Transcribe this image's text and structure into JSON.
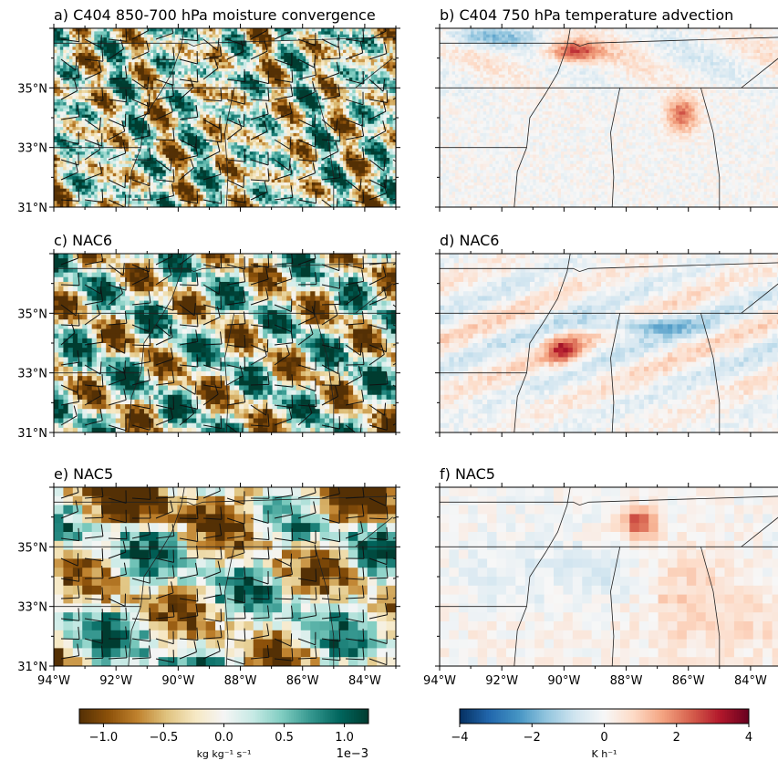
{
  "chart_data": [
    {
      "type": "heatmap",
      "panel": "a",
      "title": "a) C404 850-700 hPa moisture convergence",
      "field": "moisture convergence",
      "wind_barbs": true,
      "xlim": [
        -94,
        -83
      ],
      "ylim": [
        31,
        37
      ],
      "yticks": [
        "31°N",
        "33°N",
        "35°N"
      ],
      "colormap": "BrBG",
      "clim": [
        -0.0012,
        0.0012
      ]
    },
    {
      "type": "heatmap",
      "panel": "b",
      "title": "b) C404 750 hPa temperature advection",
      "field": "temperature advection",
      "wind_barbs": false,
      "xlim": [
        -94,
        -83
      ],
      "ylim": [
        31,
        37
      ],
      "colormap": "RdBu_r",
      "clim": [
        -4,
        4
      ]
    },
    {
      "type": "heatmap",
      "panel": "c",
      "title": "c) NAC6",
      "field": "moisture convergence",
      "wind_barbs": true,
      "xlim": [
        -94,
        -83
      ],
      "ylim": [
        31,
        37
      ],
      "yticks": [
        "31°N",
        "33°N",
        "35°N"
      ],
      "colormap": "BrBG",
      "clim": [
        -0.0012,
        0.0012
      ]
    },
    {
      "type": "heatmap",
      "panel": "d",
      "title": "d) NAC6",
      "field": "temperature advection",
      "wind_barbs": false,
      "xlim": [
        -94,
        -83
      ],
      "ylim": [
        31,
        37
      ],
      "colormap": "RdBu_r",
      "clim": [
        -4,
        4
      ]
    },
    {
      "type": "heatmap",
      "panel": "e",
      "title": "e) NAC5",
      "field": "moisture convergence",
      "wind_barbs": true,
      "xlim": [
        -94,
        -83
      ],
      "ylim": [
        31,
        37
      ],
      "yticks": [
        "31°N",
        "33°N",
        "35°N"
      ],
      "xticks": [
        "94°W",
        "92°W",
        "90°W",
        "88°W",
        "86°W",
        "84°W"
      ],
      "colormap": "BrBG",
      "clim": [
        -0.0012,
        0.0012
      ]
    },
    {
      "type": "heatmap",
      "panel": "f",
      "title": "f) NAC5",
      "field": "temperature advection",
      "wind_barbs": false,
      "xlim": [
        -94,
        -83
      ],
      "ylim": [
        31,
        37
      ],
      "xticks": [
        "94°W",
        "92°W",
        "90°W",
        "88°W",
        "86°W",
        "84°W"
      ],
      "colormap": "RdBu_r",
      "clim": [
        -4,
        4
      ]
    }
  ],
  "colorbars": {
    "left": {
      "ticks": [
        "−1.0",
        "−0.5",
        "0.0",
        "0.5",
        "1.0"
      ],
      "tick_values": [
        -1.0,
        -0.5,
        0.0,
        0.5,
        1.0
      ],
      "range": [
        -1.2,
        1.2
      ],
      "label": "kg kg⁻¹ s⁻¹",
      "offset": "1e−3",
      "colors": [
        "#543005",
        "#8c510a",
        "#bf812d",
        "#dfc27d",
        "#f6e8c3",
        "#f5f5f5",
        "#c7eae5",
        "#80cdc1",
        "#35978f",
        "#01665e",
        "#003c30"
      ]
    },
    "right": {
      "ticks": [
        "−4",
        "−2",
        "0",
        "2",
        "4"
      ],
      "tick_values": [
        -4,
        -2,
        0,
        2,
        4
      ],
      "range": [
        -4,
        4
      ],
      "label": "K h⁻¹",
      "colors": [
        "#053061",
        "#2166ac",
        "#4393c3",
        "#92c5de",
        "#d1e5f0",
        "#f7f7f7",
        "#fddbc7",
        "#f4a582",
        "#d6604d",
        "#b2182b",
        "#67001f"
      ]
    }
  }
}
